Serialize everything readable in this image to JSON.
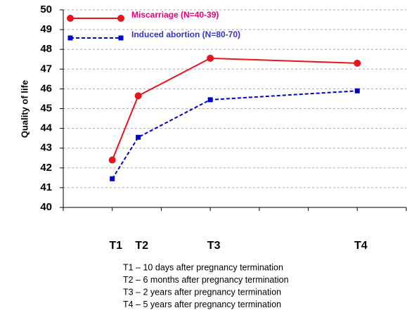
{
  "chart_data": {
    "type": "line",
    "y_label": "Quality of life",
    "x": [
      1,
      1.53,
      3,
      6
    ],
    "x_labels": [
      "T1",
      "T2",
      "T3",
      "T4"
    ],
    "xlim": [
      0,
      7
    ],
    "xticks": [
      0,
      1,
      2,
      3,
      4,
      5,
      6,
      7
    ],
    "ylim": [
      40,
      50
    ],
    "yticks": [
      40,
      41,
      42,
      43,
      44,
      45,
      46,
      47,
      48,
      49,
      50
    ],
    "grid": true,
    "legend": "upper left",
    "series": [
      {
        "name": "Miscarriage (N=40-39)",
        "color": "#e8141c",
        "label_color": "#e6007e",
        "dash": false,
        "marker": "circle",
        "values": [
          42.4,
          45.65,
          47.55,
          47.3
        ]
      },
      {
        "name": "Induced abortion (N=80-70)",
        "color": "#0000cc",
        "label_color": "#3333cc",
        "dash": true,
        "marker": "square",
        "values": [
          41.45,
          43.55,
          45.45,
          45.9
        ]
      }
    ],
    "notes": [
      "T1 – 10 days after pregnancy termination",
      "T2 – 6 months after pregnancy termination",
      "T3 – 2 years after pregnancy termination",
      "T4 – 5 years after pregnancy termination"
    ]
  }
}
